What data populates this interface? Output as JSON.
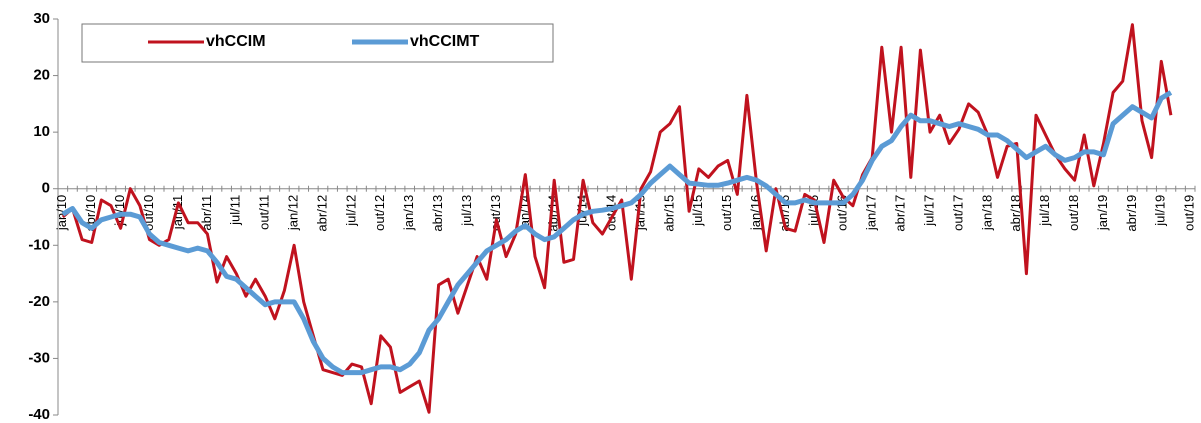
{
  "chart_data": {
    "type": "line",
    "categories": [
      "jan/10",
      null,
      null,
      "abr/10",
      null,
      null,
      "jul/10",
      null,
      null,
      "out/10",
      null,
      null,
      "jan/11",
      null,
      null,
      "abr/11",
      null,
      null,
      "jul/11",
      null,
      null,
      "out/11",
      null,
      null,
      "jan/12",
      null,
      null,
      "abr/12",
      null,
      null,
      "jul/12",
      null,
      null,
      "out/12",
      null,
      null,
      "jan/13",
      null,
      null,
      "abr/13",
      null,
      null,
      "jul/13",
      null,
      null,
      "out/13",
      null,
      null,
      "jan/14",
      null,
      null,
      "abr/14",
      null,
      null,
      "jul/14",
      null,
      null,
      "out/14",
      null,
      null,
      "jan/15",
      null,
      null,
      "abr/15",
      null,
      null,
      "jul/15",
      null,
      null,
      "out/15",
      null,
      null,
      "jan/16",
      null,
      null,
      "abr/16",
      null,
      null,
      "jul/16",
      null,
      null,
      "out/16",
      null,
      null,
      "jan/17",
      null,
      null,
      "abr/17",
      null,
      null,
      "jul/17",
      null,
      null,
      "out/17",
      null,
      null,
      "jan/18",
      null,
      null,
      "abr/18",
      null,
      null,
      "jul/18",
      null,
      null,
      "out/18",
      null,
      null,
      "jan/19",
      null,
      null,
      "abr/19",
      null,
      null,
      "jul/19",
      null,
      null,
      "out/19"
    ],
    "series": [
      {
        "name": "vhCCIM",
        "color": "#c0121e",
        "values": [
          -5,
          -3.5,
          -9,
          -9.5,
          -2,
          -3,
          -7,
          0,
          -3,
          -9,
          -10,
          -9,
          -2.5,
          -6,
          -6,
          -8,
          -16.5,
          -12,
          -15,
          -19,
          -16,
          -19,
          -23,
          -18,
          -10,
          -20,
          -26,
          -32,
          -32.5,
          -33,
          -31,
          -31.5,
          -38,
          -26,
          -28,
          -36,
          -35,
          -34,
          -39.5,
          -17,
          -16,
          -22,
          -17,
          -12,
          -16,
          -5.5,
          -12,
          -8,
          2.5,
          -12,
          -17.5,
          1.5,
          -13,
          -12.5,
          1.5,
          -6,
          -8,
          -5,
          -2,
          -16,
          0,
          3,
          10,
          11.5,
          14.5,
          -4,
          3.5,
          2,
          4,
          5,
          -1,
          16.5,
          1,
          -11,
          0,
          -7,
          -7.5,
          -1,
          -2,
          -9.5,
          1.5,
          -1.5,
          -3,
          2.5,
          5.5,
          25,
          10,
          25,
          2,
          24.5,
          10,
          13,
          8,
          10.5,
          15,
          13.5,
          9.5,
          2,
          7.5,
          8,
          -15,
          13,
          9.5,
          6,
          3.5,
          1.5,
          9.5,
          0.5,
          8,
          17,
          19,
          29,
          12,
          5.5,
          22.5,
          13,
          null,
          null
        ]
      },
      {
        "name": "vhCCIMT",
        "color": "#5b9bd5",
        "values": [
          -4.5,
          -3.5,
          -6,
          -7,
          -5.5,
          -5,
          -4.5,
          -4.5,
          -5,
          -8,
          -9.5,
          -10,
          -10.5,
          -11,
          -10.5,
          -11,
          -13,
          -15.5,
          -16,
          -17.5,
          -19,
          -20.5,
          -20,
          -20,
          -20,
          -23,
          -27,
          -30,
          -31.5,
          -32.5,
          -32.5,
          -32.5,
          -32,
          -31.5,
          -31.5,
          -32,
          -31,
          -29,
          -25,
          -23,
          -20,
          -17,
          -15,
          -13,
          -11,
          -10,
          -9,
          -7.5,
          -6.5,
          -8,
          -9,
          -8.5,
          -7,
          -5.5,
          -4.5,
          -4,
          -3.8,
          -3.5,
          -3,
          -2.5,
          -1,
          1,
          2.5,
          4,
          2.5,
          1,
          0.8,
          0.6,
          0.6,
          1,
          1.5,
          2,
          1.5,
          0.5,
          -1,
          -2.5,
          -2.5,
          -2,
          -2.5,
          -2.5,
          -2.5,
          -2.5,
          -1,
          1.5,
          5,
          7.5,
          8.5,
          11,
          13,
          12,
          12,
          11.5,
          11,
          11.5,
          11,
          10.5,
          9.5,
          9.5,
          8.5,
          7,
          5.5,
          6.5,
          7.5,
          6,
          5,
          5.5,
          6.5,
          6.5,
          6,
          11.5,
          13,
          14.5,
          13.5,
          12.5,
          16,
          17,
          null,
          null
        ]
      }
    ],
    "ylim": [
      -40,
      30
    ],
    "yticks": [
      -40,
      -30,
      -20,
      -10,
      0,
      10,
      20,
      30
    ],
    "grid": false,
    "legend": "top-left"
  }
}
